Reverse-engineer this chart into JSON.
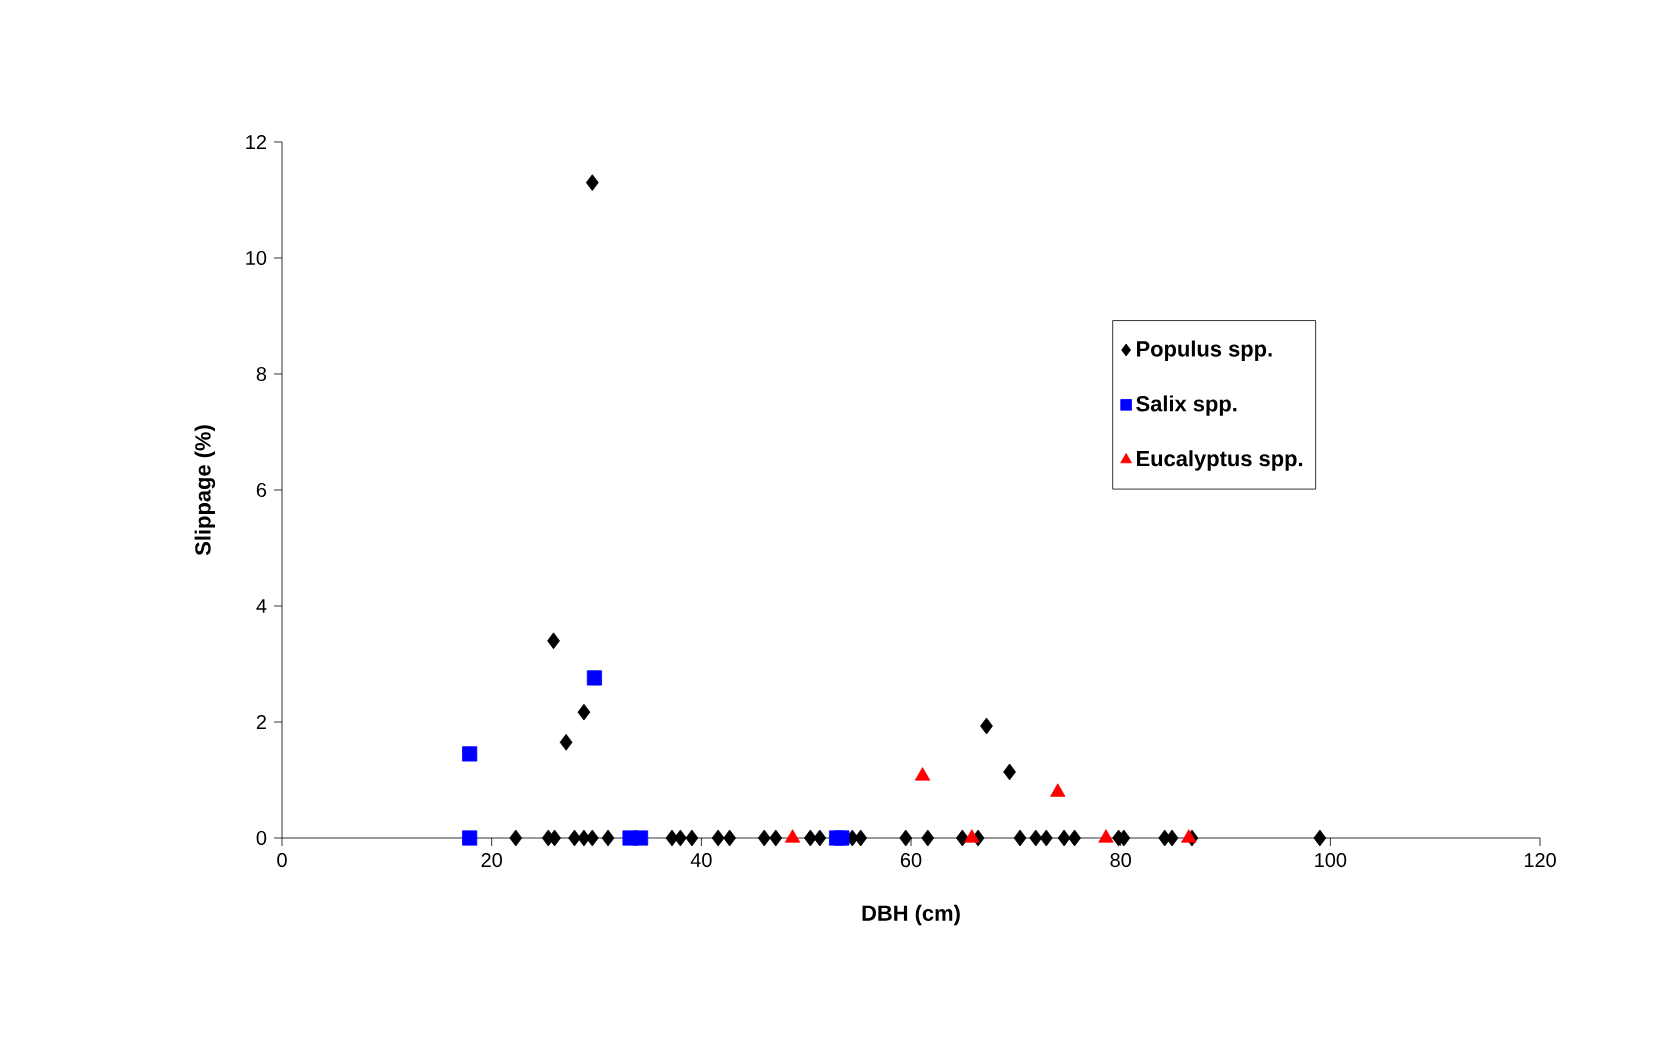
{
  "chart_data": {
    "type": "scatter",
    "xlabel": "DBH (cm)",
    "ylabel": "Slippage (%)",
    "xlim": [
      0,
      120
    ],
    "xticks": [
      0,
      20,
      40,
      60,
      80,
      100,
      120
    ],
    "ylim": [
      0,
      12
    ],
    "yticks": [
      0,
      2,
      4,
      6,
      8,
      10,
      12
    ],
    "legend": "right",
    "series": [
      {
        "name": "Populus spp.",
        "color": "#000000",
        "marker": "diamond",
        "x": [
          25.9,
          27.1,
          28.8,
          29.6,
          67.2,
          69.4,
          22.3,
          25.4,
          26,
          27.9,
          28.8,
          29.6,
          31.1,
          37.2,
          38,
          39.1,
          41.6,
          42.7,
          46,
          47.1,
          50.4,
          51.3,
          54.4,
          55.2,
          59.5,
          61.6,
          64.9,
          66.4,
          70.4,
          71.9,
          72.9,
          74.6,
          75.6,
          79.8,
          80.3,
          84.2,
          84.9,
          86.8,
          99
        ],
        "values": [
          3.4,
          1.65,
          2.17,
          11.3,
          1.93,
          1.14,
          0,
          0,
          0,
          0,
          0,
          0,
          0,
          0,
          0,
          0,
          0,
          0,
          0,
          0,
          0,
          0,
          0,
          0,
          0,
          0,
          0,
          0,
          0,
          0,
          0,
          0,
          0,
          0,
          0,
          0,
          0,
          0,
          0
        ]
      },
      {
        "name": "Salix spp.",
        "color": "#0000ff",
        "marker": "square",
        "x": [
          17.9,
          17.9,
          29.8,
          33.2,
          34.2,
          52.9,
          53.4
        ],
        "values": [
          1.45,
          0,
          2.76,
          0,
          0,
          0,
          0
        ]
      },
      {
        "name": "Eucalyptus spp.",
        "color": "#ff0000",
        "marker": "triangle",
        "x": [
          48.7,
          61.1,
          65.8,
          74,
          78.6,
          86.5
        ],
        "values": [
          0,
          1.07,
          0,
          0.79,
          0,
          0
        ]
      }
    ]
  }
}
